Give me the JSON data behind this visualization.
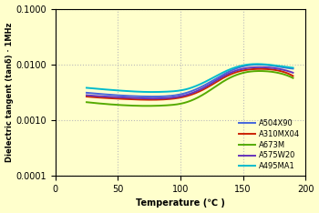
{
  "xlabel": "Temperature (℃ )",
  "ylabel": "Dielectric tangent (tanδ) · 1MHz",
  "xlim": [
    0,
    200
  ],
  "ylim_log": [
    0.0001,
    0.1
  ],
  "background_color": "#FFFFCC",
  "grid_color": "#BBBBBB",
  "series": [
    {
      "name": "A504X90",
      "color": "#4466DD",
      "x": [
        25,
        40,
        55,
        75,
        90,
        105,
        125,
        145,
        155,
        165,
        180,
        190
      ],
      "y": [
        0.0031,
        0.0029,
        0.00275,
        0.00265,
        0.0027,
        0.0031,
        0.005,
        0.0085,
        0.0097,
        0.0099,
        0.009,
        0.0084
      ]
    },
    {
      "name": "A310MX04",
      "color": "#CC2200",
      "x": [
        25,
        40,
        55,
        75,
        90,
        105,
        125,
        145,
        155,
        165,
        180,
        190
      ],
      "y": [
        0.00265,
        0.0025,
        0.0024,
        0.00232,
        0.00238,
        0.0027,
        0.0043,
        0.0073,
        0.0081,
        0.0083,
        0.0076,
        0.0062
      ]
    },
    {
      "name": "A673M",
      "color": "#55AA00",
      "x": [
        25,
        40,
        55,
        75,
        90,
        105,
        125,
        145,
        155,
        165,
        180,
        190
      ],
      "y": [
        0.0021,
        0.00195,
        0.00185,
        0.0018,
        0.00185,
        0.0021,
        0.0036,
        0.0065,
        0.0074,
        0.0076,
        0.0069,
        0.0057
      ]
    },
    {
      "name": "A575W20",
      "color": "#6633BB",
      "x": [
        25,
        40,
        55,
        75,
        90,
        105,
        125,
        145,
        155,
        165,
        180,
        190
      ],
      "y": [
        0.0028,
        0.00265,
        0.00255,
        0.00245,
        0.0025,
        0.00285,
        0.0046,
        0.0078,
        0.0087,
        0.0089,
        0.0082,
        0.0071
      ]
    },
    {
      "name": "A495MA1",
      "color": "#00BBCC",
      "x": [
        25,
        40,
        55,
        75,
        90,
        105,
        125,
        145,
        155,
        165,
        180,
        190
      ],
      "y": [
        0.0038,
        0.00355,
        0.00335,
        0.0032,
        0.00325,
        0.0036,
        0.0056,
        0.009,
        0.01,
        0.0101,
        0.0093,
        0.0087
      ]
    }
  ]
}
